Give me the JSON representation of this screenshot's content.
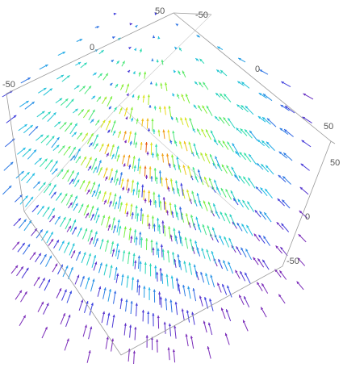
{
  "chart_data": {
    "type": "vector-field-3d",
    "title": "",
    "axes": {
      "a": {
        "range": [
          -50,
          50
        ],
        "ticks": [
          "50",
          "0",
          "-50"
        ]
      },
      "b": {
        "range": [
          -50,
          50
        ],
        "ticks": [
          "-50",
          "0",
          "50"
        ]
      },
      "c": {
        "range": [
          -50,
          50
        ],
        "ticks": [
          "50",
          "0",
          "-50"
        ]
      }
    },
    "colormap": [
      "#7a2ab8",
      "#3a3fe0",
      "#1fb8e8",
      "#2fe0a8",
      "#7cf03c",
      "#f0e21a",
      "#f08a1a",
      "#e0381a"
    ],
    "color_meaning": "vector magnitude (rainbow: violet = low, red = high)",
    "arrow_grid": [
      9,
      9,
      9
    ]
  }
}
